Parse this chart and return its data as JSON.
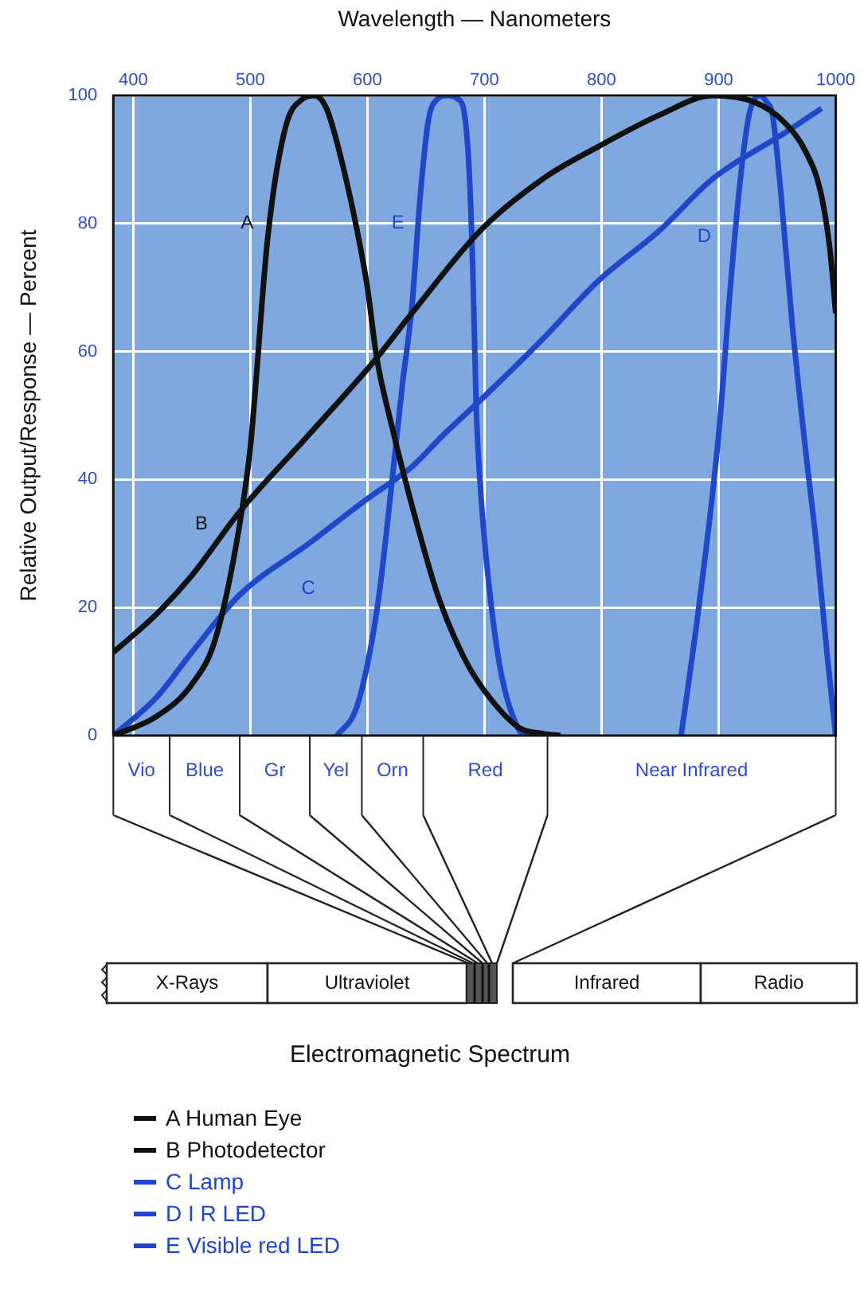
{
  "chart_data": {
    "type": "line",
    "xlabel": "Wavelength — Nanometers",
    "ylabel": "Relative Output/Response — Percent",
    "xlim": [
      383,
      1000
    ],
    "xticks": [
      400,
      500,
      600,
      700,
      800,
      900,
      1000
    ],
    "ylim": [
      0,
      100
    ],
    "yticks": [
      0,
      20,
      40,
      60,
      80,
      100
    ],
    "grid": true,
    "marker": "none",
    "legend": "bottom",
    "series": [
      {
        "name": "A Human Eye",
        "color": "#111111",
        "x": [
          383,
          420,
          450,
          470,
          490,
          500,
          515,
          530,
          545,
          555,
          565,
          575,
          590,
          600,
          608,
          620,
          638,
          660,
          683,
          700,
          729,
          750,
          765
        ],
        "values": [
          0,
          3,
          8,
          15,
          32,
          45,
          78,
          95,
          99.5,
          100,
          98,
          92,
          80,
          70,
          59,
          49,
          36,
          22,
          12,
          7,
          1.3,
          0.3,
          0
        ]
      },
      {
        "name": "B Photodetector",
        "color": "#111111",
        "x": [
          383,
          420,
          450,
          491,
          550,
          608,
          638,
          697,
          750,
          797,
          850,
          895,
          930,
          955,
          975,
          987,
          995,
          1000
        ],
        "values": [
          13,
          19,
          25,
          35,
          47,
          59,
          66,
          79,
          87,
          92,
          97,
          100,
          99,
          96,
          91,
          85,
          76,
          66
        ]
      },
      {
        "name": "C Lamp",
        "color": "#1f48c8",
        "x": [
          383,
          420,
          450,
          491,
          550,
          600,
          638,
          665,
          700,
          750,
          797,
          850,
          895,
          955,
          988
        ],
        "values": [
          0,
          6,
          13,
          22,
          30,
          37,
          42,
          47,
          53,
          62,
          71,
          79,
          87,
          94,
          98
        ]
      },
      {
        "name": "D I R LED",
        "color": "#1f48c8",
        "x": [
          868,
          883,
          900,
          910,
          918,
          926,
          935,
          941,
          946,
          953,
          963,
          974,
          984,
          993,
          1000
        ],
        "values": [
          0,
          20,
          47,
          70,
          86,
          97,
          100,
          99,
          97,
          85,
          64,
          45,
          29,
          12,
          0
        ]
      },
      {
        "name": "E Visible red LED",
        "color": "#1f48c8",
        "x": [
          574,
          590,
          601,
          610,
          620,
          630,
          638,
          645,
          652,
          660,
          668,
          677,
          683,
          687,
          690,
          693,
          698,
          706,
          715,
          729,
          735
        ],
        "values": [
          0,
          4,
          12,
          22,
          38,
          55,
          67,
          84,
          96,
          99.5,
          100,
          99.5,
          97,
          88,
          73,
          51,
          35,
          20,
          9,
          1,
          0
        ]
      }
    ],
    "annotations": [
      "A",
      "B",
      "C",
      "D",
      "E",
      "Vio",
      "Blue",
      "Gr",
      "Yel",
      "Orn",
      "Red",
      "Near Infrared",
      "X-Rays",
      "Ultraviolet",
      "Infrared",
      "Radio",
      "Electromagnetic Spectrum"
    ]
  }
}
